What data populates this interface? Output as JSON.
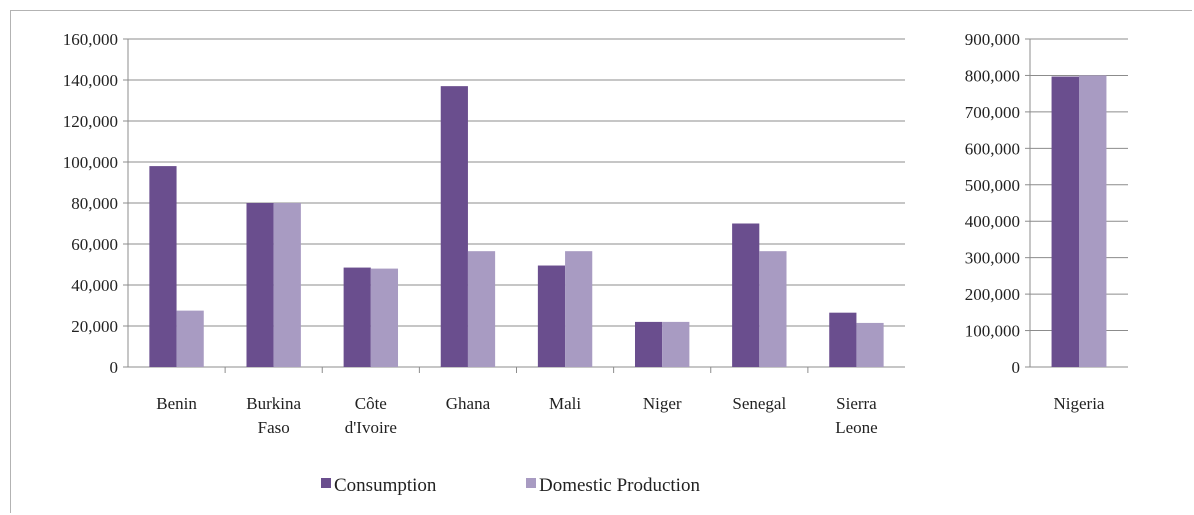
{
  "chart_data": [
    {
      "type": "bar",
      "categories": [
        [
          "Benin"
        ],
        [
          "Burkina",
          "Faso"
        ],
        [
          "Côte",
          "d'Ivoire"
        ],
        [
          "Ghana"
        ],
        [
          "Mali"
        ],
        [
          "Niger"
        ],
        [
          "Senegal"
        ],
        [
          "Sierra",
          "Leone"
        ]
      ],
      "series": [
        {
          "name": "Consumption",
          "values": [
            98000,
            80000,
            48500,
            137000,
            49500,
            22000,
            70000,
            26500
          ]
        },
        {
          "name": "Domestic Production",
          "values": [
            27500,
            80000,
            48000,
            56500,
            56500,
            22000,
            56500,
            21500
          ]
        }
      ],
      "ylim": [
        0,
        160000
      ],
      "yticks": [
        "0",
        "20,000",
        "40,000",
        "60,000",
        "80,000",
        "100,000",
        "120,000",
        "140,000",
        "160,000"
      ],
      "title": "",
      "xlabel": "",
      "ylabel": "",
      "grid": true
    },
    {
      "type": "bar",
      "categories": [
        [
          "Nigeria"
        ]
      ],
      "series": [
        {
          "name": "Consumption",
          "values": [
            797000
          ]
        },
        {
          "name": "Domestic Production",
          "values": [
            800000
          ]
        }
      ],
      "ylim": [
        0,
        900000
      ],
      "yticks": [
        "0",
        "100,000",
        "200,000",
        "300,000",
        "400,000",
        "500,000",
        "600,000",
        "700,000",
        "800,000",
        "900,000"
      ],
      "title": "",
      "xlabel": "",
      "ylabel": "",
      "grid": true
    }
  ],
  "legend": {
    "placement": "bottom",
    "items": [
      {
        "label": "Consumption",
        "color": "#6a4e8e"
      },
      {
        "label": "Domestic Production",
        "color": "#a89bc2"
      }
    ]
  },
  "colors": {
    "consumption": "#6a4e8e",
    "production": "#a89bc2",
    "grid": "#8c8c8c",
    "axis": "#8c8c8c"
  }
}
